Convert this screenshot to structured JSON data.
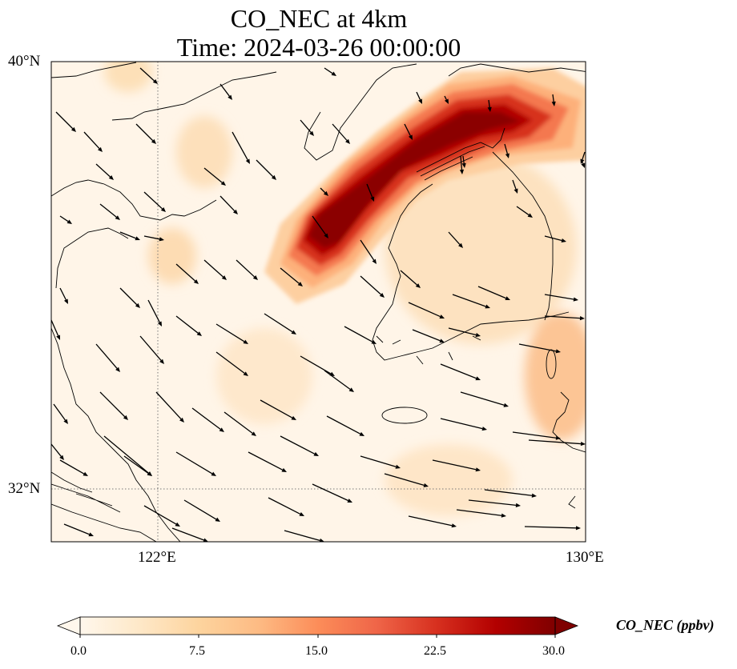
{
  "title": {
    "line1": "CO_NEC at 4km",
    "line2": "Time: 2024-03-26 00:00:00"
  },
  "map": {
    "region": {
      "lon_min": 120,
      "lon_max": 130,
      "lat_min": 31,
      "lat_max": 40
    },
    "lat_ticks": [
      "40°N",
      "32°N"
    ],
    "lon_ticks": [
      "122°E",
      "130°E"
    ],
    "gridlines": {
      "style": "dotted",
      "lon": [
        122
      ],
      "lat": [
        32
      ]
    },
    "features": [
      "coastlines",
      "wind-vectors",
      "CO concentration field"
    ]
  },
  "colorbar": {
    "label": "CO_NEC (ppbv)",
    "ticks": [
      "0.0",
      "7.5",
      "15.0",
      "22.5",
      "30.0"
    ],
    "min": 0,
    "max": 30,
    "colormap": "OrRd",
    "extend": "both",
    "colors": [
      "#fff7ec",
      "#fee8c8",
      "#fdd49e",
      "#fdbb84",
      "#fc8d59",
      "#ef6548",
      "#d7301f",
      "#b30000",
      "#7f0000"
    ]
  }
}
